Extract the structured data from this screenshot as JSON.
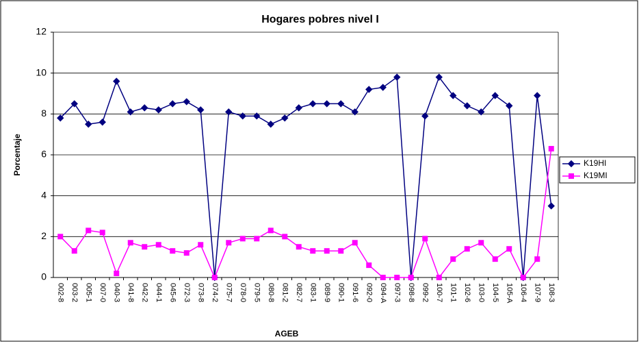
{
  "chart_data": {
    "type": "line",
    "title": "Hogares pobres nivel I",
    "x_label": "AGEB",
    "y_label": "Porcentaje",
    "categories": [
      "002-8",
      "003-2",
      "005-1",
      "007-0",
      "040-3",
      "041-8",
      "042-2",
      "044-1",
      "045-6",
      "072-3",
      "073-8",
      "074-2",
      "075-7",
      "078-0",
      "079-5",
      "080-8",
      "081-2",
      "082-7",
      "083-1",
      "089-9",
      "090-1",
      "091-6",
      "092-0",
      "094-A",
      "097-3",
      "098-8",
      "099-2",
      "100-7",
      "101-1",
      "102-6",
      "103-0",
      "104-5",
      "105-A",
      "106-4",
      "107-9",
      "108-3"
    ],
    "series": [
      {
        "name": "K19HI",
        "color": "#000080",
        "marker": "diamond",
        "values": [
          7.8,
          8.5,
          7.5,
          7.6,
          9.6,
          8.1,
          8.3,
          8.2,
          8.5,
          8.6,
          8.2,
          0,
          8.1,
          7.9,
          7.9,
          7.5,
          7.8,
          8.3,
          8.5,
          8.5,
          8.5,
          8.1,
          9.2,
          9.3,
          9.8,
          0,
          7.9,
          9.8,
          8.9,
          8.4,
          8.1,
          8.9,
          8.4,
          0,
          8.9,
          3.5
        ]
      },
      {
        "name": "K19MI",
        "color": "#ff00ff",
        "marker": "square",
        "values": [
          2.0,
          1.3,
          2.3,
          2.2,
          0.2,
          1.7,
          1.5,
          1.6,
          1.3,
          1.2,
          1.6,
          0,
          1.7,
          1.9,
          1.9,
          2.3,
          2.0,
          1.5,
          1.3,
          1.3,
          1.3,
          1.7,
          0.6,
          0,
          0,
          0,
          1.9,
          0,
          0.9,
          1.4,
          1.7,
          0.9,
          1.4,
          0,
          0.9,
          6.3
        ]
      }
    ],
    "ylim": [
      0,
      12
    ],
    "yticks": [
      0,
      2,
      4,
      6,
      8,
      10,
      12
    ],
    "grid": true,
    "legend": "right"
  }
}
